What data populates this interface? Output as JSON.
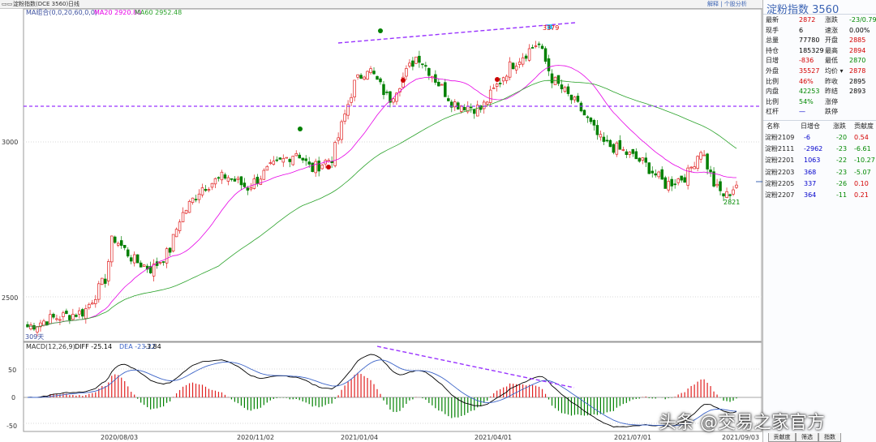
{
  "topbar": {
    "code_label": "淀粉指数(DCE 3560)",
    "period": "日线",
    "right_tools": "解释 | 个股分析"
  },
  "main_chart": {
    "legend_name": "MA组合(0,0,20,60,0,0)",
    "ma20_label": "MA20 2920.80",
    "ma60_label": "MA60 2952.48",
    "high_label": "3379",
    "low_label": "2821",
    "days_label": "309天",
    "y_ticks": [
      "3000",
      "2500"
    ],
    "colors": {
      "up": "#e02020",
      "down": "#008000",
      "ma20": "#e600e6",
      "ma60": "#2aa22a",
      "trend": "#9933ff",
      "grid": "#d8d8d8"
    }
  },
  "macd": {
    "legend_name": "MACD(12,26,9)",
    "diff_label": "DIFF -25.14",
    "dea_label": "DEA -23.22",
    "macd_value": "-3.84",
    "y_ticks": [
      "50",
      "0",
      "-50"
    ]
  },
  "x_axis": {
    "dates": [
      "2020/08/03",
      "2020/11/02",
      "2021/01/04",
      "2021/04/01",
      "2021/07/01",
      "2021/09/03"
    ]
  },
  "chart_data": [
    {
      "type": "line",
      "title": "淀粉指数(DCE 3560) 日线",
      "ylim": [
        2400,
        3400
      ],
      "x": [
        "2020/08/03",
        "2020/11/02",
        "2021/01/04",
        "2021/04/01",
        "2021/07/01",
        "2021/09/03"
      ],
      "series": [
        {
          "name": "MA20",
          "values": [
            2430,
            2780,
            3050,
            3150,
            3040,
            2920
          ]
        },
        {
          "name": "MA60",
          "values": [
            2405,
            2670,
            2950,
            3200,
            3180,
            2952
          ]
        }
      ],
      "annotations": [
        "3379",
        "2821",
        "309天"
      ]
    },
    {
      "type": "bar",
      "title": "MACD(12,26,9)",
      "ylim": [
        -60,
        90
      ],
      "series": [
        {
          "name": "DIFF",
          "values": [
            -25.14
          ]
        },
        {
          "name": "DEA",
          "values": [
            -23.22
          ]
        },
        {
          "name": "MACD",
          "values": [
            -3.84
          ]
        }
      ]
    }
  ],
  "panel": {
    "title": "淀粉指数 3560",
    "left": [
      {
        "label": "最新",
        "value": "2872"
      },
      {
        "label": "现手",
        "value": "6"
      },
      {
        "label": "总量",
        "value": "77780"
      },
      {
        "label": "持仓",
        "value": "185329"
      },
      {
        "label": "日增",
        "value": "-836"
      },
      {
        "label": "外盘",
        "value": "35527"
      },
      {
        "label": "比例",
        "value": "46%"
      },
      {
        "label": "内盘",
        "value": "42253"
      },
      {
        "label": "比例",
        "value": "54%"
      },
      {
        "label": "杠杆",
        "value": "—"
      }
    ],
    "right": [
      {
        "label": "涨跌",
        "value": "-23/0.79%"
      },
      {
        "label": "速涨",
        "value": "0.00%"
      },
      {
        "label": "开盘",
        "value": "2885"
      },
      {
        "label": "最高",
        "value": "2894"
      },
      {
        "label": "最低",
        "value": "2870"
      },
      {
        "label": "均价 ▾",
        "value": "2878"
      },
      {
        "label": "昨收",
        "value": "2895"
      },
      {
        "label": "昨结",
        "value": "2893"
      },
      {
        "label": "涨停",
        "value": ""
      },
      {
        "label": "跌停",
        "value": ""
      }
    ],
    "table_headers": [
      "名称",
      "日增仓",
      "涨跌",
      "贡献度"
    ],
    "rows": [
      {
        "name": "淀粉2109",
        "inc": "-6",
        "chg": "-20",
        "contrib": "0.54"
      },
      {
        "name": "淀粉2111",
        "inc": "-2962",
        "chg": "-23",
        "contrib": "-6.61"
      },
      {
        "name": "淀粉2201",
        "inc": "1063",
        "chg": "-22",
        "contrib": "-10.27"
      },
      {
        "name": "淀粉2203",
        "inc": "368",
        "chg": "-23",
        "contrib": "-5.07"
      },
      {
        "name": "淀粉2205",
        "inc": "337",
        "chg": "-26",
        "contrib": "0.10"
      },
      {
        "name": "淀粉2207",
        "inc": "364",
        "chg": "-11",
        "contrib": "0.21"
      }
    ],
    "tabs": [
      "贡献度",
      "筛选",
      "指数"
    ]
  },
  "watermark": "头条 @交易之家官方"
}
